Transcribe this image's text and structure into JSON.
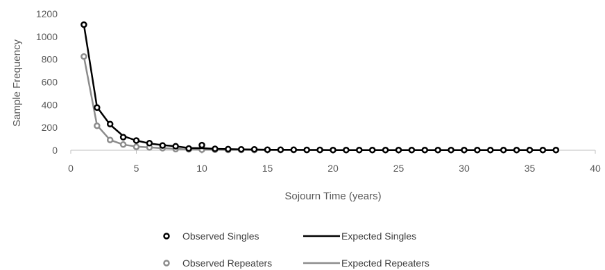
{
  "chart_data": {
    "type": "line",
    "title": "",
    "xlabel": "Sojourn Time (years)",
    "ylabel": "Sample Frequency",
    "xlim": [
      0,
      40
    ],
    "ylim": [
      0,
      1200
    ],
    "xticks": [
      0,
      5,
      10,
      15,
      20,
      25,
      30,
      35,
      40
    ],
    "yticks": [
      0,
      200,
      400,
      600,
      800,
      1000,
      1200
    ],
    "grid": false,
    "legend_position": "bottom",
    "series": [
      {
        "name": "Observed Singles",
        "kind": "markers",
        "color": "#000000",
        "x": [
          1,
          2,
          3,
          4,
          5,
          6,
          7,
          8,
          9,
          10,
          11,
          12,
          13,
          14,
          15,
          16,
          17,
          18,
          19,
          20,
          21,
          22,
          23,
          24,
          25,
          26,
          27,
          28,
          29,
          30,
          31,
          32,
          33,
          34,
          35,
          36,
          37
        ],
        "y": [
          1105,
          375,
          230,
          115,
          85,
          62,
          42,
          35,
          15,
          45,
          12,
          10,
          8,
          8,
          5,
          4,
          4,
          3,
          3,
          2,
          2,
          2,
          2,
          2,
          2,
          2,
          2,
          2,
          2,
          2,
          2,
          2,
          2,
          2,
          2,
          2,
          2
        ]
      },
      {
        "name": "Expected Singles",
        "kind": "line",
        "color": "#000000",
        "x": [
          1,
          2,
          3,
          4,
          5,
          6,
          7,
          8,
          9,
          10,
          11,
          12,
          13,
          14,
          15,
          16,
          17,
          18,
          19,
          20,
          21,
          22,
          23,
          24,
          25,
          26,
          27,
          28,
          29,
          30,
          31,
          32,
          33,
          34,
          35,
          36,
          37
        ],
        "y": [
          1105,
          380,
          225,
          125,
          85,
          60,
          45,
          35,
          20,
          18,
          12,
          10,
          8,
          7,
          5,
          4,
          4,
          3,
          3,
          2,
          2,
          2,
          2,
          2,
          2,
          2,
          2,
          2,
          2,
          2,
          2,
          2,
          2,
          2,
          2,
          2,
          2
        ]
      },
      {
        "name": "Observed Repeaters",
        "kind": "markers",
        "color": "#8c8c8c",
        "x": [
          1,
          2,
          3,
          4,
          5,
          6,
          7,
          8,
          9,
          10,
          11,
          12,
          13,
          14,
          15,
          16,
          17,
          18,
          19,
          20,
          21,
          22,
          23,
          24,
          25,
          26,
          27,
          28,
          29,
          30,
          31,
          32,
          33,
          34,
          35,
          36,
          37
        ],
        "y": [
          825,
          215,
          90,
          50,
          30,
          25,
          18,
          10,
          8,
          5,
          4,
          3,
          3,
          2,
          2,
          2,
          2,
          2,
          2,
          2,
          2,
          2,
          2,
          2,
          2,
          2,
          2,
          2,
          2,
          2,
          2,
          2,
          2,
          2,
          2,
          2,
          2
        ]
      },
      {
        "name": "Expected Repeaters",
        "kind": "line",
        "color": "#8c8c8c",
        "x": [
          1,
          2,
          3,
          4,
          5,
          6,
          7,
          8,
          9,
          10,
          11,
          12,
          13,
          14,
          15,
          16,
          17,
          18,
          19,
          20,
          21,
          22,
          23,
          24,
          25,
          26,
          27,
          28,
          29,
          30,
          31,
          32,
          33,
          34,
          35,
          36,
          37
        ],
        "y": [
          825,
          220,
          90,
          50,
          32,
          25,
          18,
          12,
          8,
          5,
          4,
          3,
          3,
          2,
          2,
          2,
          2,
          2,
          2,
          2,
          2,
          2,
          2,
          2,
          2,
          2,
          2,
          2,
          2,
          2,
          2,
          2,
          2,
          2,
          2,
          2,
          2
        ]
      }
    ]
  }
}
